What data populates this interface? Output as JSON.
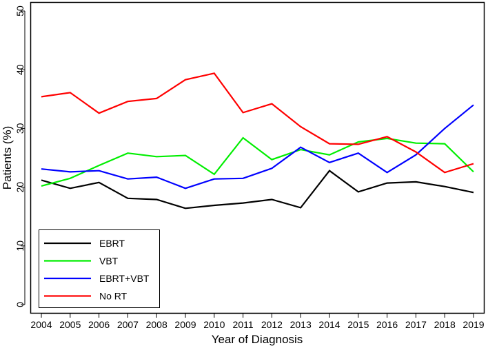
{
  "chart_data": {
    "type": "line",
    "title": "",
    "xlabel": "Year of Diagnosis",
    "ylabel": "Patients (%)",
    "ylim": [
      0,
      50
    ],
    "yticks": [
      0,
      10,
      20,
      30,
      40,
      50
    ],
    "categories": [
      "2004",
      "2005",
      "2006",
      "2007",
      "2008",
      "2009",
      "2010",
      "2011",
      "2012",
      "2013",
      "2014",
      "2015",
      "2016",
      "2017",
      "2018",
      "2019"
    ],
    "grid": false,
    "legend_position": "bottom-left",
    "series": [
      {
        "name": "EBRT",
        "color": "#000000",
        "values": [
          21.2,
          19.8,
          20.8,
          18.1,
          17.9,
          16.4,
          16.9,
          17.3,
          17.9,
          16.5,
          22.8,
          19.2,
          20.7,
          20.9,
          20.1,
          19.1
        ]
      },
      {
        "name": "VBT",
        "color": "#00ee00",
        "values": [
          20.2,
          21.5,
          23.7,
          25.8,
          25.2,
          25.4,
          22.2,
          28.4,
          24.7,
          26.4,
          25.5,
          27.7,
          28.3,
          27.5,
          27.4,
          22.6
        ]
      },
      {
        "name": "EBRT+VBT",
        "color": "#0000ff",
        "values": [
          23.1,
          22.6,
          22.8,
          21.4,
          21.7,
          19.8,
          21.4,
          21.5,
          23.2,
          26.8,
          24.2,
          25.8,
          22.5,
          25.5,
          30.0,
          34.0
        ]
      },
      {
        "name": "No RT",
        "color": "#ff0000",
        "values": [
          35.4,
          36.1,
          32.6,
          34.6,
          35.1,
          38.3,
          39.4,
          32.7,
          34.2,
          30.3,
          27.4,
          27.3,
          28.6,
          26.0,
          22.5,
          24.0
        ]
      }
    ]
  }
}
